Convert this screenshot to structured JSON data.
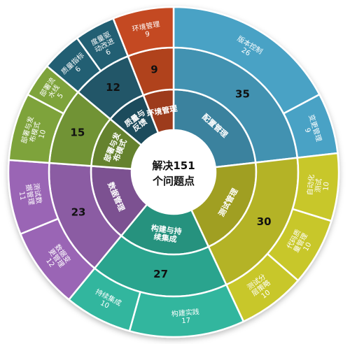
{
  "chart_data": {
    "type": "sunburst",
    "center": [
      "解决151",
      "个问题点"
    ],
    "categories": [
      {
        "name": "配置管理",
        "value": 35,
        "color": "#4aa2c5",
        "children": [
          {
            "name": "版本控制",
            "value": 26
          },
          {
            "name": "变更管理",
            "value": 9
          }
        ]
      },
      {
        "name": "测试管理",
        "value": 30,
        "color": "#c8c72a",
        "children": [
          {
            "name": "自动化测试",
            "value": 10
          },
          {
            "name": "代码质量管理",
            "value": 10
          },
          {
            "name": "测试分层策略",
            "value": 10
          }
        ]
      },
      {
        "name": "构建与持续集成",
        "value": 27,
        "color": "#30b69e",
        "children": [
          {
            "name": "构建实践",
            "value": 17
          },
          {
            "name": "持续集成",
            "value": 10
          }
        ]
      },
      {
        "name": "数据管理",
        "value": 23,
        "color": "#9a65b5",
        "children": [
          {
            "name": "数据变更管理",
            "value": 12
          },
          {
            "name": "测试数据管理",
            "value": 11
          }
        ]
      },
      {
        "name": "部署与发布模式",
        "value": 15,
        "color": "#7ea33a",
        "children": [
          {
            "name": "部署与发布模式",
            "value": 10
          },
          {
            "name": "部署流水线",
            "value": 5
          }
        ]
      },
      {
        "name": "质量与反馈",
        "value": 12,
        "color": "#245f73",
        "children": [
          {
            "name": "质量指标",
            "value": 6
          },
          {
            "name": "度量驱动改进",
            "value": 6
          }
        ]
      },
      {
        "name": "环境管理",
        "value": 9,
        "color": "#c44a22",
        "children": [
          {
            "name": "环境管理",
            "value": 9
          }
        ]
      }
    ]
  }
}
